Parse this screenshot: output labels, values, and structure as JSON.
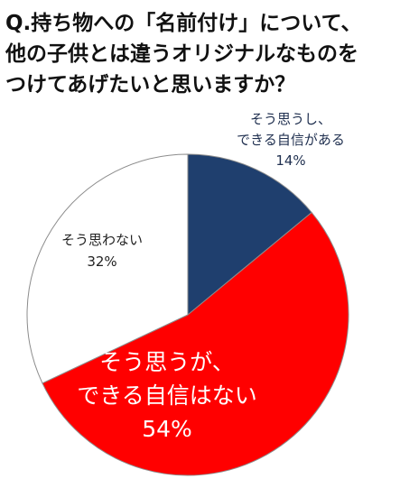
{
  "title_lines": [
    "Q.持ち物への「名前付け」について、",
    "他の子供とは違うオリジナルなものを",
    "つけてあげたいと思いますか？"
  ],
  "chart_data": {
    "type": "pie",
    "title": "Q.持ち物への「名前付け」について、他の子供とは違うオリジナルなものをつけてあげたいと思いますか？",
    "start": "12 o'clock",
    "direction": "clockwise",
    "slices": [
      {
        "label_lines": [
          "そう思うし、",
          "できる自信がある"
        ],
        "value": 14,
        "value_label": "14%",
        "color": "#1f3f6e",
        "label_color": "#1f2f4f"
      },
      {
        "label_lines": [
          "そう思うが、",
          "できる自信はない"
        ],
        "value": 54,
        "value_label": "54%",
        "color": "#ff0000",
        "label_color": "#ffffff"
      },
      {
        "label_lines": [
          "そう思わない"
        ],
        "value": 32,
        "value_label": "32%",
        "color": "#ffffff",
        "label_color": "#222222"
      }
    ],
    "border_color": "#8c8c8c"
  }
}
